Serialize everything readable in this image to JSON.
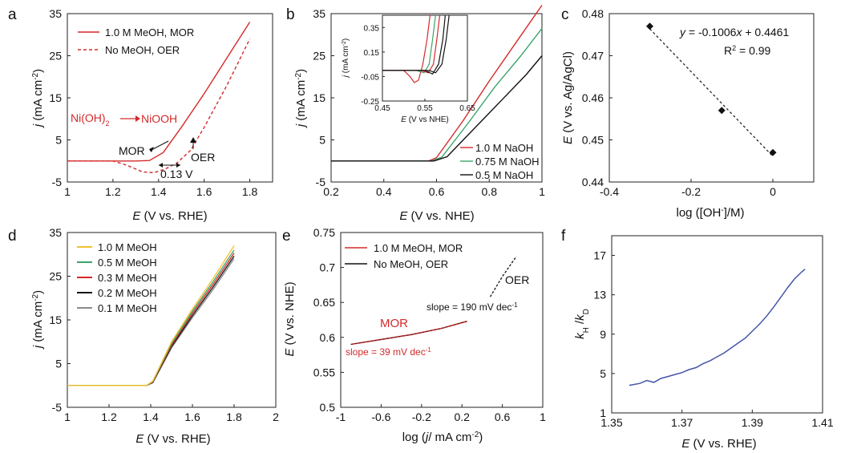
{
  "colors": {
    "red": "#d42a2a",
    "green": "#3aa56a",
    "black": "#111111",
    "yellow": "#f2c12e",
    "gray": "#8a8a8a",
    "blue": "#4455a8"
  },
  "chart_data": [
    {
      "panel": "a",
      "type": "line",
      "xlabel_i": "E",
      "xlabel_r": " (V vs. RHE)",
      "ylabel_i": "j",
      "ylabel_r": " (mA cm",
      "xlim": [
        1,
        1.9
      ],
      "ylim": [
        -5,
        35
      ],
      "xticks": [
        "1",
        "1.2",
        "1.4",
        "1.6",
        "1.8"
      ],
      "yticks": [
        "-5",
        "5",
        "15",
        "25",
        "35"
      ],
      "series": [
        {
          "name": "1.0 M MeOH, MOR",
          "style": "solid",
          "color": "red",
          "points": [
            [
              1.0,
              0.0
            ],
            [
              1.3,
              0.0
            ],
            [
              1.36,
              0.1
            ],
            [
              1.42,
              2.0
            ],
            [
              1.5,
              8.0
            ],
            [
              1.6,
              16.0
            ],
            [
              1.7,
              24.5
            ],
            [
              1.8,
              33.0
            ]
          ]
        },
        {
          "name": "No MeOH, OER",
          "style": "dashed",
          "color": "red",
          "points": [
            [
              1.0,
              0.0
            ],
            [
              1.2,
              0.0
            ],
            [
              1.26,
              -1.0
            ],
            [
              1.33,
              -2.6
            ],
            [
              1.38,
              -2.8
            ],
            [
              1.43,
              -1.9
            ],
            [
              1.48,
              -0.5
            ],
            [
              1.54,
              2.5
            ],
            [
              1.6,
              8.0
            ],
            [
              1.7,
              18.0
            ],
            [
              1.8,
              29.0
            ]
          ]
        }
      ],
      "annotations": {
        "arrow_label_left": "Ni(OH)",
        "arrow_label_right": "NiOOH",
        "mor": "MOR",
        "oer": "OER",
        "gap": "0.13 V"
      }
    },
    {
      "panel": "b",
      "type": "line",
      "xlabel_i": "E",
      "xlabel_r": " (V vs. NHE)",
      "ylabel_i": "j",
      "ylabel_r": " (mA cm",
      "xlim": [
        0.2,
        1
      ],
      "ylim": [
        -5,
        35
      ],
      "xticks": [
        "0.2",
        "0.4",
        "0.6",
        "0.8",
        "1"
      ],
      "yticks": [
        "-5",
        "5",
        "15",
        "25",
        "35"
      ],
      "series": [
        {
          "name": "1.0 M NaOH",
          "color": "red",
          "points": [
            [
              0.2,
              0.0
            ],
            [
              0.57,
              0.0
            ],
            [
              0.6,
              0.8
            ],
            [
              0.7,
              9.5
            ],
            [
              0.8,
              19.0
            ],
            [
              0.9,
              28.0
            ],
            [
              1.0,
              37.0
            ]
          ]
        },
        {
          "name": "0.75 M NaOH",
          "color": "green",
          "points": [
            [
              0.2,
              0.0
            ],
            [
              0.58,
              0.0
            ],
            [
              0.62,
              0.9
            ],
            [
              0.72,
              9.0
            ],
            [
              0.82,
              17.5
            ],
            [
              0.92,
              25.0
            ],
            [
              1.0,
              31.5
            ]
          ]
        },
        {
          "name": "0.5 M NaOH",
          "color": "black",
          "points": [
            [
              0.2,
              0.0
            ],
            [
              0.59,
              0.0
            ],
            [
              0.64,
              1.0
            ],
            [
              0.74,
              7.5
            ],
            [
              0.84,
              14.0
            ],
            [
              0.94,
              20.5
            ],
            [
              1.0,
              25.0
            ]
          ]
        }
      ],
      "inset": {
        "xlabel_i": "E",
        "xlabel_r": " (V vs NHE)",
        "ylabel_i": "j",
        "ylabel_r": " (mA cm",
        "xlim": [
          0.45,
          0.65
        ],
        "ylim": [
          -0.25,
          0.45
        ],
        "xticks": [
          "0.45",
          "0.55",
          "0.65"
        ],
        "yticks": [
          "-0.25",
          "-0.05",
          "0.15",
          "0.35"
        ],
        "series": [
          {
            "color": "red",
            "points": [
              [
                0.45,
                0.0
              ],
              [
                0.5,
                0.0
              ],
              [
                0.515,
                -0.05
              ],
              [
                0.525,
                -0.1
              ],
              [
                0.535,
                -0.08
              ],
              [
                0.545,
                0.05
              ],
              [
                0.555,
                0.25
              ],
              [
                0.562,
                0.45
              ]
            ]
          },
          {
            "color": "green",
            "points": [
              [
                0.45,
                0.0
              ],
              [
                0.53,
                0.0
              ],
              [
                0.548,
                -0.02
              ],
              [
                0.56,
                0.05
              ],
              [
                0.568,
                0.25
              ],
              [
                0.575,
                0.45
              ]
            ]
          },
          {
            "color": "red",
            "points": [
              [
                0.45,
                0.0
              ],
              [
                0.54,
                0.0
              ],
              [
                0.558,
                -0.02
              ],
              [
                0.57,
                0.05
              ],
              [
                0.578,
                0.25
              ],
              [
                0.585,
                0.45
              ]
            ]
          },
          {
            "color": "black",
            "points": [
              [
                0.45,
                0.0
              ],
              [
                0.55,
                0.0
              ],
              [
                0.568,
                -0.03
              ],
              [
                0.582,
                0.05
              ],
              [
                0.592,
                0.25
              ],
              [
                0.598,
                0.45
              ]
            ]
          },
          {
            "color": "black",
            "points": [
              [
                0.45,
                0.0
              ],
              [
                0.56,
                0.0
              ],
              [
                0.575,
                -0.02
              ],
              [
                0.59,
                0.05
              ],
              [
                0.6,
                0.25
              ],
              [
                0.607,
                0.45
              ]
            ]
          }
        ]
      }
    },
    {
      "panel": "c",
      "type": "scatter",
      "xlabel": "log ([OH",
      "xlabel_tail": "]/M)",
      "ylabel_i": "E",
      "ylabel_r": " (V vs. Ag/AgCl)",
      "xlim": [
        -0.4,
        0.1
      ],
      "ylim": [
        0.44,
        0.48
      ],
      "xticks": [
        "-0.4",
        "-0.2",
        "0"
      ],
      "yticks": [
        "0.44",
        "0.45",
        "0.46",
        "0.47",
        "0.48"
      ],
      "points": [
        [
          -0.301,
          0.477
        ],
        [
          -0.125,
          0.457
        ],
        [
          0.0,
          0.447
        ]
      ],
      "fit": {
        "slope": -0.1006,
        "intercept": 0.4461
      },
      "equation_y": "y",
      "equation_mid": " = -0.1006",
      "equation_x": "x",
      "equation_tail": " + 0.4461",
      "r2": "R",
      "r2_tail": " = 0.99"
    },
    {
      "panel": "d",
      "type": "line",
      "xlabel_i": "E",
      "xlabel_r": " (V vs. RHE)",
      "ylabel_i": "j",
      "ylabel_r": " (mA cm",
      "xlim": [
        1,
        2
      ],
      "ylim": [
        -5,
        35
      ],
      "xticks": [
        "1",
        "1.2",
        "1.4",
        "1.6",
        "1.8",
        "2"
      ],
      "yticks": [
        "-5",
        "5",
        "15",
        "25",
        "35"
      ],
      "series": [
        {
          "name": "1.0 M MeOH",
          "color": "yellow",
          "points": [
            [
              1.0,
              0.0
            ],
            [
              1.38,
              0.0
            ],
            [
              1.41,
              1.0
            ],
            [
              1.5,
              10.0
            ],
            [
              1.6,
              17.5
            ],
            [
              1.7,
              24.5
            ],
            [
              1.8,
              32.0
            ]
          ]
        },
        {
          "name": "0.5 M MeOH",
          "color": "green",
          "points": [
            [
              1.0,
              0.0
            ],
            [
              1.38,
              0.0
            ],
            [
              1.41,
              0.9
            ],
            [
              1.5,
              9.6
            ],
            [
              1.6,
              17.0
            ],
            [
              1.7,
              23.8
            ],
            [
              1.8,
              31.0
            ]
          ]
        },
        {
          "name": "0.3 M MeOH",
          "color": "red",
          "points": [
            [
              1.0,
              0.0
            ],
            [
              1.38,
              0.0
            ],
            [
              1.41,
              0.8
            ],
            [
              1.5,
              9.2
            ],
            [
              1.6,
              16.5
            ],
            [
              1.7,
              23.2
            ],
            [
              1.8,
              30.3
            ]
          ]
        },
        {
          "name": "0.2 M MeOH",
          "color": "black",
          "points": [
            [
              1.0,
              0.0
            ],
            [
              1.38,
              0.0
            ],
            [
              1.41,
              0.7
            ],
            [
              1.5,
              8.9
            ],
            [
              1.6,
              16.0
            ],
            [
              1.7,
              22.6
            ],
            [
              1.8,
              29.6
            ]
          ]
        },
        {
          "name": "0.1 M MeOH",
          "color": "gray",
          "points": [
            [
              1.0,
              0.0
            ],
            [
              1.38,
              0.0
            ],
            [
              1.41,
              0.6
            ],
            [
              1.5,
              8.6
            ],
            [
              1.6,
              15.5
            ],
            [
              1.7,
              22.0
            ],
            [
              1.8,
              29.0
            ]
          ]
        }
      ]
    },
    {
      "panel": "e",
      "type": "line",
      "xlabel": "log (",
      "xlabel_i": "j",
      "xlabel_tail": "/ mA cm",
      "ylabel_i": "E",
      "ylabel_r": " (V vs. NHE)",
      "xlim": [
        -1,
        1
      ],
      "ylim": [
        0.5,
        0.75
      ],
      "xticks": [
        "-1",
        "-0.6",
        "-0.2",
        "0.2",
        "0.6",
        "1"
      ],
      "yticks": [
        "0.5",
        "0.55",
        "0.6",
        "0.65",
        "0.7",
        "0.75"
      ],
      "series": [
        {
          "name": "1.0 M MeOH, MOR",
          "color": "red",
          "points": [
            [
              -0.9,
              0.59
            ],
            [
              -0.6,
              0.597
            ],
            [
              -0.3,
              0.604
            ],
            [
              0.0,
              0.613
            ],
            [
              0.25,
              0.623
            ]
          ]
        },
        {
          "name": "No MeOH, OER",
          "color": "black",
          "points": [
            [
              0.48,
              0.658
            ],
            [
              0.6,
              0.687
            ],
            [
              0.74,
              0.716
            ]
          ]
        }
      ],
      "labels": {
        "oer": "OER",
        "mor": "MOR",
        "slope_oer": "slope = 190 mV dec",
        "slope_mor": "slope = 39 mV dec"
      }
    },
    {
      "panel": "f",
      "type": "line",
      "xlabel_i": "E",
      "xlabel_r": " (V vs. RHE)",
      "ylabel_i": "k",
      "ylabel_mid": " /",
      "ylabel_i2": "k",
      "xlim": [
        1.35,
        1.41
      ],
      "ylim": [
        1,
        19
      ],
      "xticks": [
        "1.35",
        "1.37",
        "1.39",
        "1.41"
      ],
      "yticks": [
        "1",
        "5",
        "9",
        "13",
        "17"
      ],
      "series": [
        {
          "name": "kH/kD",
          "color": "blue",
          "points": [
            [
              1.355,
              3.8
            ],
            [
              1.358,
              4.0
            ],
            [
              1.36,
              4.3
            ],
            [
              1.362,
              4.1
            ],
            [
              1.364,
              4.5
            ],
            [
              1.366,
              4.7
            ],
            [
              1.368,
              4.9
            ],
            [
              1.37,
              5.1
            ],
            [
              1.372,
              5.4
            ],
            [
              1.374,
              5.6
            ],
            [
              1.376,
              6.0
            ],
            [
              1.378,
              6.3
            ],
            [
              1.38,
              6.7
            ],
            [
              1.382,
              7.1
            ],
            [
              1.384,
              7.6
            ],
            [
              1.386,
              8.1
            ],
            [
              1.388,
              8.6
            ],
            [
              1.39,
              9.3
            ],
            [
              1.392,
              10.0
            ],
            [
              1.394,
              10.8
            ],
            [
              1.396,
              11.7
            ],
            [
              1.398,
              12.7
            ],
            [
              1.4,
              13.7
            ],
            [
              1.402,
              14.6
            ],
            [
              1.404,
              15.3
            ],
            [
              1.405,
              15.6
            ]
          ]
        }
      ]
    }
  ],
  "panel_letters": [
    "a",
    "b",
    "c",
    "d",
    "e",
    "f"
  ],
  "units": {
    "cm_exp": "-2",
    "minus_one": "-1",
    "ohm_sup": "-",
    "two": "2",
    "sub_h": "H",
    "sub_d": "D",
    "paren": ")"
  }
}
